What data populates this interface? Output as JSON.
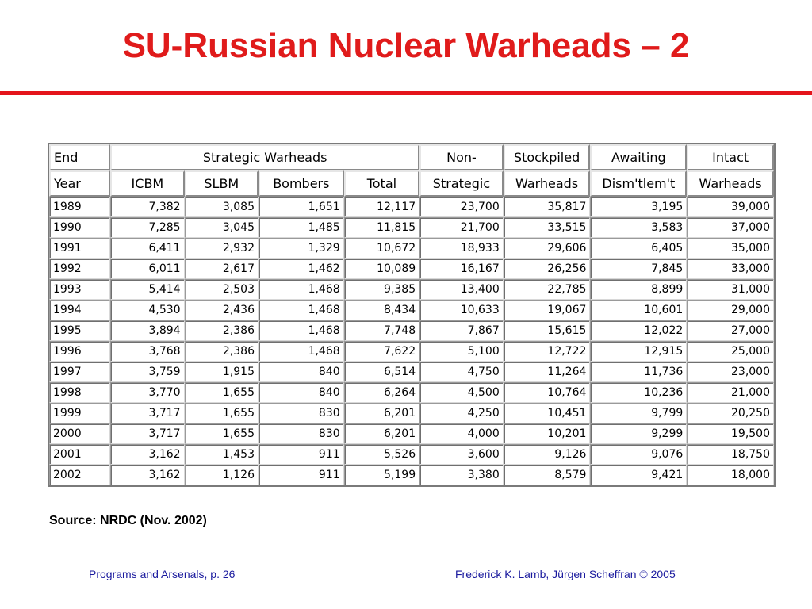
{
  "title": "SU-Russian Nuclear Warheads – 2",
  "table": {
    "header_row1": {
      "end": "End",
      "strategic_warheads": "Strategic Warheads",
      "non": "Non-",
      "stockpiled": "Stockpiled",
      "awaiting": "Awaiting",
      "intact": "Intact"
    },
    "header_row2": {
      "year": "Year",
      "icbm": "ICBM",
      "slbm": "SLBM",
      "bombers": "Bombers",
      "total": "Total",
      "strategic": "Strategic",
      "warheads": "Warheads",
      "dismtlemt": "Dism'tlem't",
      "intact_warheads": "Warheads"
    },
    "rows": [
      [
        "1989",
        "7,382",
        "3,085",
        "1,651",
        "12,117",
        "23,700",
        "35,817",
        "3,195",
        "39,000"
      ],
      [
        "1990",
        "7,285",
        "3,045",
        "1,485",
        "11,815",
        "21,700",
        "33,515",
        "3,583",
        "37,000"
      ],
      [
        "1991",
        "6,411",
        "2,932",
        "1,329",
        "10,672",
        "18,933",
        "29,606",
        "6,405",
        "35,000"
      ],
      [
        "1992",
        "6,011",
        "2,617",
        "1,462",
        "10,089",
        "16,167",
        "26,256",
        "7,845",
        "33,000"
      ],
      [
        "1993",
        "5,414",
        "2,503",
        "1,468",
        "9,385",
        "13,400",
        "22,785",
        "8,899",
        "31,000"
      ],
      [
        "1994",
        "4,530",
        "2,436",
        "1,468",
        "8,434",
        "10,633",
        "19,067",
        "10,601",
        "29,000"
      ],
      [
        "1995",
        "3,894",
        "2,386",
        "1,468",
        "7,748",
        "7,867",
        "15,615",
        "12,022",
        "27,000"
      ],
      [
        "1996",
        "3,768",
        "2,386",
        "1,468",
        "7,622",
        "5,100",
        "12,722",
        "12,915",
        "25,000"
      ],
      [
        "1997",
        "3,759",
        "1,915",
        "840",
        "6,514",
        "4,750",
        "11,264",
        "11,736",
        "23,000"
      ],
      [
        "1998",
        "3,770",
        "1,655",
        "840",
        "6,264",
        "4,500",
        "10,764",
        "10,236",
        "21,000"
      ],
      [
        "1999",
        "3,717",
        "1,655",
        "830",
        "6,201",
        "4,250",
        "10,451",
        "9,799",
        "20,250"
      ],
      [
        "2000",
        "3,717",
        "1,655",
        "830",
        "6,201",
        "4,000",
        "10,201",
        "9,299",
        "19,500"
      ],
      [
        "2001",
        "3,162",
        "1,453",
        "911",
        "5,526",
        "3,600",
        "9,126",
        "9,076",
        "18,750"
      ],
      [
        "2002",
        "3,162",
        "1,126",
        "911",
        "5,199",
        "3,380",
        "8,579",
        "9,421",
        "18,000"
      ]
    ]
  },
  "source": "Source: NRDC (Nov. 2002)",
  "footer": {
    "left": "Programs and Arsenals, p. 26",
    "right": "Frederick K. Lamb, Jürgen Scheffran © 2005"
  },
  "colors": {
    "title": "#e01b1b",
    "rule": "#e4141b",
    "footer": "#1a1a9e"
  }
}
